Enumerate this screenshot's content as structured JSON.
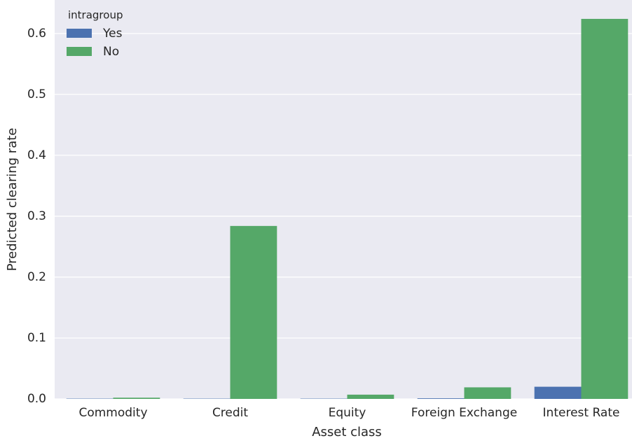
{
  "chart_data": {
    "type": "bar",
    "x_label": "Asset class",
    "y_label": "Predicted clearing rate",
    "categories": [
      "Commodity",
      "Credit",
      "Equity",
      "Foreign Exchange",
      "Interest Rate"
    ],
    "legend_title": "intragroup",
    "legend_position": "upper left",
    "series": [
      {
        "name": "Yes",
        "color": "#4c72b0",
        "values": [
          0.0005,
          0.0005,
          0.0005,
          0.001,
          0.02
        ]
      },
      {
        "name": "No",
        "color": "#55a868",
        "values": [
          0.002,
          0.284,
          0.007,
          0.019,
          0.624
        ]
      }
    ],
    "ylim": [
      0,
      0.655
    ],
    "yticks": [
      {
        "value": 0,
        "label": "0.0"
      },
      0.1,
      0.2,
      0.3,
      0.4,
      0.5,
      0.6
    ],
    "grid": true
  }
}
